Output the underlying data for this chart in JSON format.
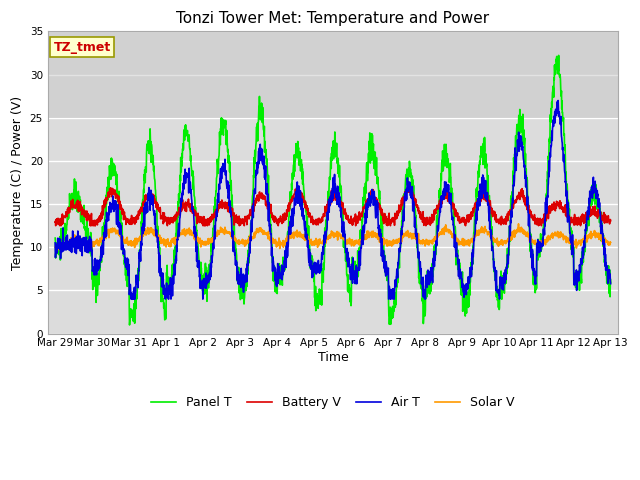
{
  "title": "Tonzi Tower Met: Temperature and Power",
  "xlabel": "Time",
  "ylabel": "Temperature (C) / Power (V)",
  "ylim": [
    0,
    35
  ],
  "annotation": "TZ_tmet",
  "annotation_color": "#cc0000",
  "annotation_bg": "#ffffcc",
  "annotation_border": "#999900",
  "legend_labels": [
    "Panel T",
    "Battery V",
    "Air T",
    "Solar V"
  ],
  "legend_colors": [
    "#00ee00",
    "#dd0000",
    "#0000dd",
    "#ff9900"
  ],
  "x_tick_labels": [
    "Mar 29",
    "Mar 30",
    "Mar 31",
    "Apr 1",
    "Apr 2",
    "Apr 3",
    "Apr 4",
    "Apr 5",
    "Apr 6",
    "Apr 7",
    "Apr 8",
    "Apr 9",
    "Apr 10",
    "Apr 11",
    "Apr 12",
    "Apr 13"
  ],
  "x_tick_positions": [
    0,
    1,
    2,
    3,
    4,
    5,
    6,
    7,
    8,
    9,
    10,
    11,
    12,
    13,
    14,
    15
  ],
  "yticks": [
    0,
    5,
    10,
    15,
    20,
    25,
    30,
    35
  ],
  "title_fontsize": 11,
  "tick_fontsize": 7.5,
  "label_fontsize": 9,
  "line_width": 1.2,
  "figsize": [
    6.4,
    4.8
  ],
  "dpi": 100
}
